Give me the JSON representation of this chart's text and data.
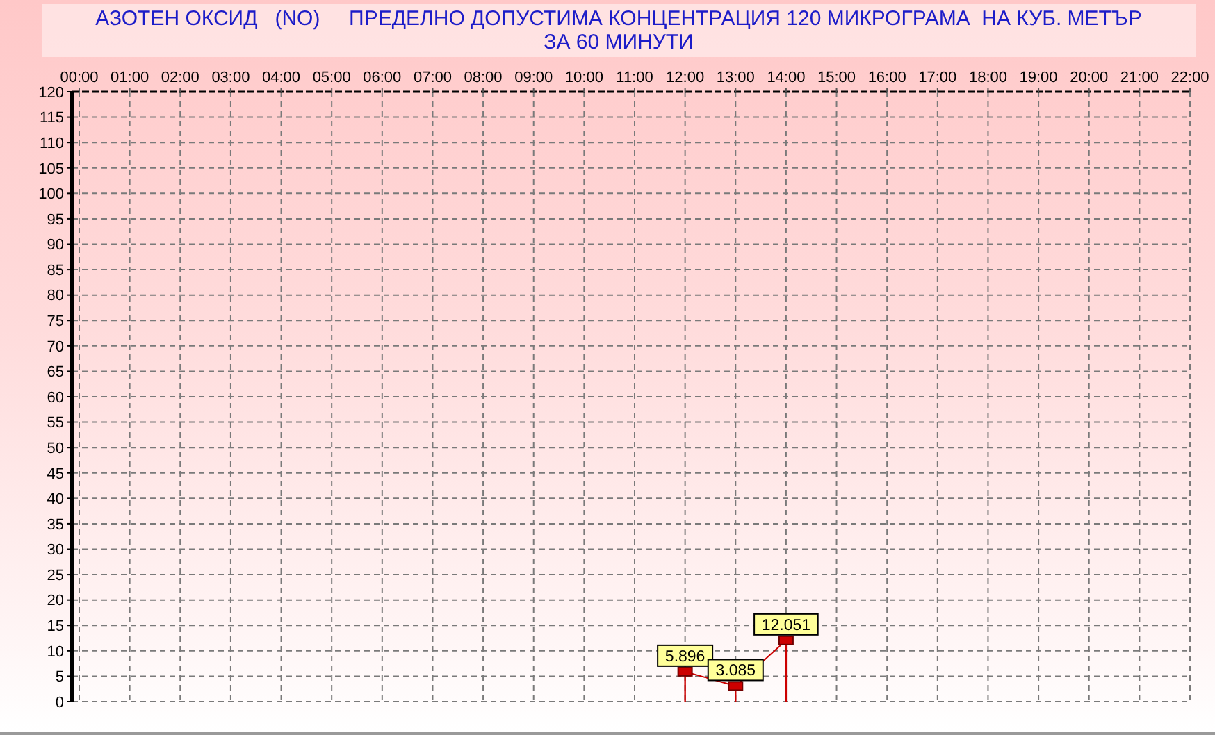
{
  "chart_data": {
    "type": "lollipop",
    "title": "АЗОТЕН ОКСИД   (NO)     ПРЕДЕЛНО ДОПУСТИМА КОНЦЕНТРАЦИЯ 120 МИКРОГРАМА  НА КУБ. МЕТЪР\nЗА 60 МИНУТИ",
    "x": [
      12,
      13,
      14
    ],
    "values": [
      5.896,
      3.085,
      12.051
    ],
    "color": "#cc0000",
    "xlim": [
      0,
      22
    ],
    "xticks": [
      {
        "value": 0,
        "label": "00:00"
      },
      {
        "value": 1,
        "label": "01:00"
      },
      {
        "value": 2,
        "label": "02:00"
      },
      {
        "value": 3,
        "label": "03:00"
      },
      {
        "value": 4,
        "label": "04:00"
      },
      {
        "value": 5,
        "label": "05:00"
      },
      {
        "value": 6,
        "label": "06:00"
      },
      {
        "value": 7,
        "label": "07:00"
      },
      {
        "value": 8,
        "label": "08:00"
      },
      {
        "value": 9,
        "label": "09:00"
      },
      {
        "value": 10,
        "label": "10:00"
      },
      {
        "value": 11,
        "label": "11:00"
      },
      {
        "value": 12,
        "label": "12:00"
      },
      {
        "value": 13,
        "label": "13:00"
      },
      {
        "value": 14,
        "label": "14:00"
      },
      {
        "value": 15,
        "label": "15:00"
      },
      {
        "value": 16,
        "label": "16:00"
      },
      {
        "value": 17,
        "label": "17:00"
      },
      {
        "value": 18,
        "label": "18:00"
      },
      {
        "value": 19,
        "label": "19:00"
      },
      {
        "value": 20,
        "label": "20:00"
      },
      {
        "value": 21,
        "label": "21:00"
      },
      {
        "value": 22,
        "label": "22:00"
      }
    ],
    "ylim": [
      0,
      120
    ],
    "yticks": [
      0,
      5,
      10,
      15,
      20,
      25,
      30,
      35,
      40,
      45,
      50,
      55,
      60,
      65,
      70,
      75,
      80,
      85,
      90,
      95,
      100,
      105,
      110,
      115,
      120
    ],
    "grid": true,
    "marker": "square",
    "line_style": "solid",
    "data_labels": true
  }
}
